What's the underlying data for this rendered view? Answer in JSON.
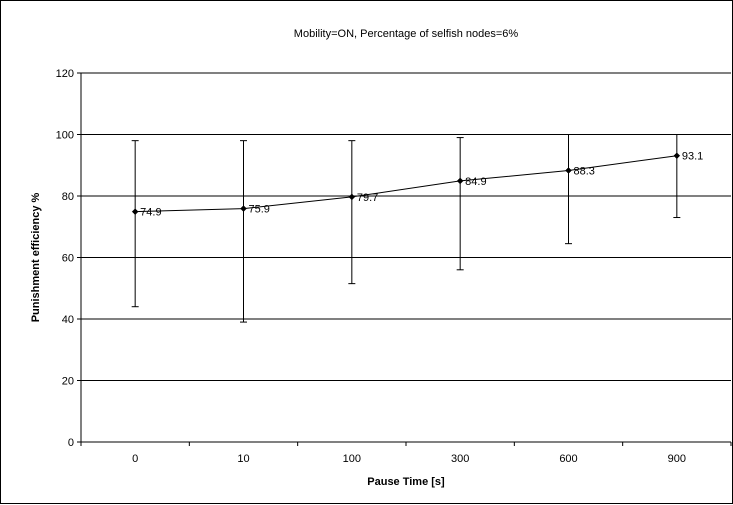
{
  "chart_data": {
    "type": "line",
    "title": "Mobility=ON, Percentage of selfish nodes=6%",
    "xlabel": "Pause Time [s]",
    "ylabel": "Punishment efficiency %",
    "categories": [
      "0",
      "10",
      "100",
      "300",
      "600",
      "900"
    ],
    "series": [
      {
        "values": [
          74.9,
          75.9,
          79.7,
          84.9,
          88.3,
          93.1
        ],
        "error_low": [
          44,
          39,
          51.5,
          56,
          64.5,
          73
        ],
        "error_high": [
          98,
          98,
          98,
          99,
          100,
          100
        ],
        "data_labels": [
          "74.9",
          "75.9",
          "79.7",
          "84.9",
          "88.3",
          "93.1"
        ]
      }
    ],
    "ylim": [
      0,
      120
    ],
    "yticks": [
      "0",
      "20",
      "40",
      "60",
      "80",
      "100",
      "120"
    ],
    "grid": true,
    "legend": "none",
    "colors": {
      "line": "#000000",
      "grid": "#000000",
      "background": "#ffffff"
    }
  }
}
